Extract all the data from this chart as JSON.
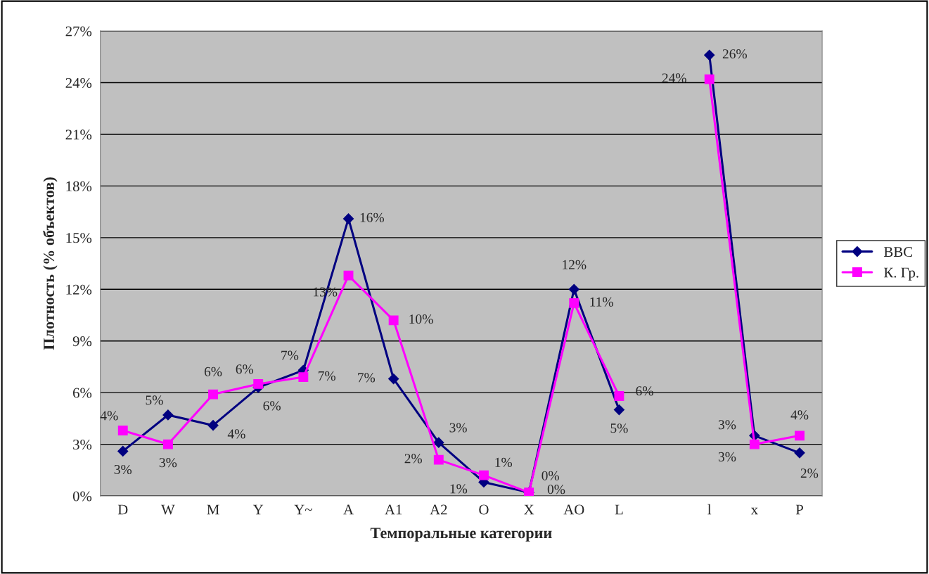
{
  "chart_data": {
    "type": "line",
    "xlabel": "Темпоральные категории",
    "ylabel": "Плотность (% объектов)",
    "categories": [
      "D",
      "W",
      "M",
      "Y",
      "Y~",
      "A",
      "A1",
      "A2",
      "O",
      "X",
      "AO",
      "L",
      null,
      "l",
      "x",
      "P"
    ],
    "series": [
      {
        "name": "BBC",
        "color": "#000080",
        "marker": "diamond",
        "values": [
          2.6,
          4.7,
          4.1,
          6.3,
          7.3,
          16.1,
          6.8,
          3.1,
          0.8,
          0.2,
          12.0,
          5.0,
          null,
          25.6,
          3.5,
          2.5
        ],
        "value_labels": [
          "3%",
          "5%",
          "4%",
          "6%",
          "7%",
          "16%",
          "7%",
          "3%",
          "1%",
          "0%",
          "12%",
          "5%",
          null,
          "26%",
          "3%",
          "2%"
        ]
      },
      {
        "name": "К. Гр.",
        "color": "#ff00ff",
        "marker": "square",
        "values": [
          3.8,
          3.0,
          5.9,
          6.5,
          6.9,
          12.8,
          10.2,
          2.1,
          1.2,
          0.2,
          11.2,
          5.8,
          null,
          24.2,
          3.0,
          3.5
        ],
        "value_labels": [
          "4%",
          "3%",
          "6%",
          "6%",
          "7%",
          "13%",
          "10%",
          "2%",
          "1%",
          "0%",
          "11%",
          "6%",
          null,
          "24%",
          "3%",
          "4%"
        ]
      }
    ],
    "ylim": [
      0,
      27
    ],
    "yticks": [
      {
        "value": 0,
        "label": "0%"
      },
      {
        "value": 3,
        "label": "3%"
      },
      {
        "value": 6,
        "label": "6%"
      },
      {
        "value": 9,
        "label": "9%"
      },
      {
        "value": 12,
        "label": "12%"
      },
      {
        "value": 15,
        "label": "15%"
      },
      {
        "value": 18,
        "label": "18%"
      },
      {
        "value": 21,
        "label": "21%"
      },
      {
        "value": 24,
        "label": "24%"
      },
      {
        "value": 27,
        "label": "27%"
      }
    ],
    "grid": "y",
    "legend": "right",
    "line_style": "solid"
  }
}
